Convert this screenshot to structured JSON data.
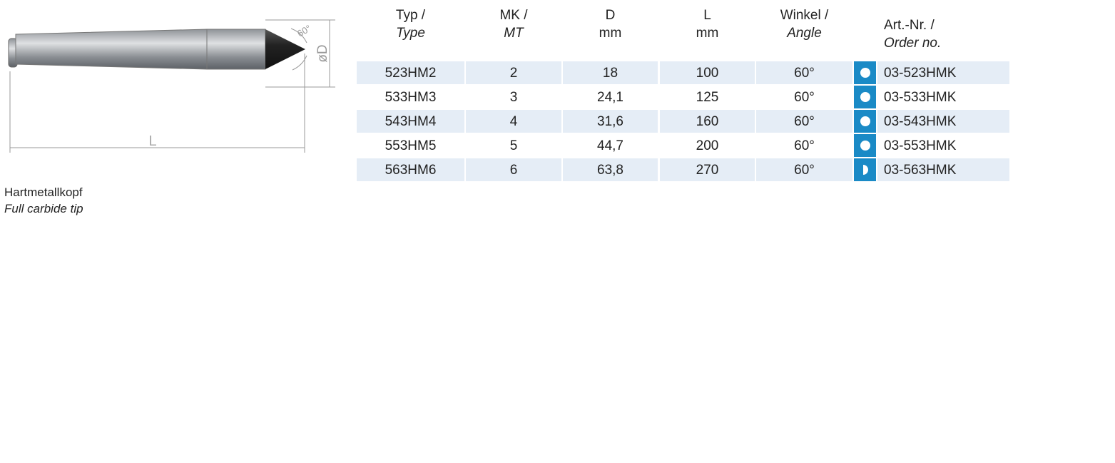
{
  "drawing": {
    "angle_label": "60°",
    "diameter_label": "øD",
    "length_label": "L"
  },
  "caption": {
    "line1": "Hartmetallkopf",
    "line2": "Full carbide tip"
  },
  "table": {
    "headers": [
      [
        "Typ /",
        "Type"
      ],
      [
        "MK /",
        "MT"
      ],
      [
        "D",
        "mm"
      ],
      [
        "L",
        "mm"
      ],
      [
        "Winkel /",
        "Angle"
      ],
      [
        "Art.-Nr. /",
        "Order no."
      ]
    ],
    "rows": [
      {
        "cells": [
          "523HM2",
          "2",
          "18",
          "100",
          "60°",
          "03-523HMK"
        ],
        "icon": "full"
      },
      {
        "cells": [
          "533HM3",
          "3",
          "24,1",
          "125",
          "60°",
          "03-533HMK"
        ],
        "icon": "full"
      },
      {
        "cells": [
          "543HM4",
          "4",
          "31,6",
          "160",
          "60°",
          "03-543HMK"
        ],
        "icon": "full"
      },
      {
        "cells": [
          "553HM5",
          "5",
          "44,7",
          "200",
          "60°",
          "03-553HMK"
        ],
        "icon": "full"
      },
      {
        "cells": [
          "563HM6",
          "6",
          "63,8",
          "270",
          "60°",
          "03-563HMK"
        ],
        "icon": "half"
      }
    ]
  }
}
